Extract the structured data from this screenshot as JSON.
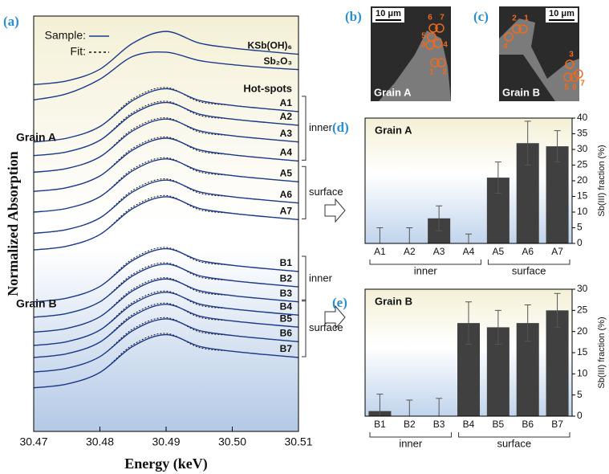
{
  "chart_data": [
    {
      "type": "line",
      "panel": "(a)",
      "xlabel": "Energy (keV)",
      "ylabel": "Normalized Absorption",
      "x": [
        30.47,
        30.475,
        30.48,
        30.485,
        30.49,
        30.495,
        30.5,
        30.505,
        30.51
      ],
      "xlim": [
        30.47,
        30.51
      ],
      "xticks": [
        30.47,
        30.48,
        30.49,
        {
          "value": 30.5,
          "label": "30.50"
        },
        30.51
      ],
      "ylim": [
        0,
        100
      ],
      "color": "#1c3a8c",
      "fit_color": "#111111",
      "legend": [
        {
          "label": "Sample:",
          "style": "solid"
        },
        {
          "label": "Fit:",
          "style": "dashed"
        }
      ],
      "annotations": [
        "Hot-spots",
        "Grain A",
        "Grain B"
      ],
      "groups": [
        {
          "label": "inner",
          "from": "A1",
          "to": "A4"
        },
        {
          "label": "surface",
          "from": "A5",
          "to": "A7"
        },
        {
          "label": "inner",
          "from": "B1",
          "to": "B3"
        },
        {
          "label": "surface",
          "from": "B4",
          "to": "B7"
        }
      ],
      "series": [
        {
          "name": "KSb(OH)₆",
          "values": [
            83.5,
            84.4,
            87.2,
            93.5,
            96.3,
            93.5,
            92.3,
            91.5,
            90.8
          ]
        },
        {
          "name": "Sb₂O₃",
          "values": [
            79.8,
            81.3,
            84.8,
            90.3,
            91.3,
            89.3,
            88.3,
            87.6,
            87.1
          ]
        },
        {
          "name": "A1",
          "values": [
            69.7,
            70.6,
            73.4,
            79.7,
            82.5,
            79.7,
            78.5,
            77.7,
            77.0
          ],
          "fit": [
            69.7,
            70.6,
            73.4,
            80.1,
            82.8,
            79.4,
            78.5,
            77.7,
            77.0
          ]
        },
        {
          "name": "A2",
          "values": [
            66.4,
            67.3,
            70.1,
            76.4,
            79.2,
            76.4,
            75.2,
            74.4,
            73.7
          ],
          "fit": [
            66.4,
            67.3,
            70.1,
            76.8,
            79.5,
            76.1,
            75.2,
            74.4,
            73.7
          ]
        },
        {
          "name": "A3",
          "values": [
            62.4,
            63.3,
            66.1,
            72.4,
            75.2,
            72.4,
            71.2,
            70.4,
            69.7
          ],
          "fit": [
            62.4,
            63.3,
            66.1,
            72.8,
            75.5,
            72.1,
            71.2,
            70.4,
            69.7
          ]
        },
        {
          "name": "A4",
          "values": [
            57.8,
            58.7,
            61.5,
            67.8,
            70.6,
            67.8,
            66.6,
            65.8,
            65.1
          ],
          "fit": [
            57.8,
            58.7,
            61.5,
            68.2,
            70.9,
            67.5,
            66.6,
            65.8,
            65.1
          ]
        },
        {
          "name": "A5",
          "values": [
            52.8,
            53.7,
            56.5,
            62.8,
            65.6,
            62.8,
            61.6,
            60.8,
            60.1
          ],
          "fit": [
            52.8,
            53.7,
            56.5,
            63.2,
            65.9,
            62.5,
            61.6,
            60.8,
            60.1
          ]
        },
        {
          "name": "A6",
          "values": [
            47.7,
            48.6,
            51.4,
            57.7,
            60.5,
            57.7,
            56.5,
            55.7,
            55.0
          ],
          "fit": [
            47.7,
            48.6,
            51.4,
            58.1,
            60.8,
            57.4,
            56.5,
            55.7,
            55.0
          ]
        },
        {
          "name": "A7",
          "values": [
            43.7,
            44.6,
            47.4,
            53.7,
            56.5,
            53.7,
            52.5,
            51.7,
            51.0
          ],
          "fit": [
            43.7,
            44.6,
            47.4,
            54.1,
            56.8,
            53.4,
            52.5,
            51.7,
            51.0
          ]
        },
        {
          "name": "B1",
          "values": [
            31.2,
            32.1,
            34.9,
            41.2,
            44.0,
            41.2,
            40.0,
            39.2,
            38.5
          ],
          "fit": [
            31.2,
            32.1,
            34.9,
            41.6,
            44.3,
            40.9,
            40.0,
            39.2,
            38.5
          ]
        },
        {
          "name": "B2",
          "values": [
            27.5,
            28.4,
            31.2,
            37.5,
            40.3,
            37.5,
            36.3,
            35.5,
            34.8
          ],
          "fit": [
            27.5,
            28.4,
            31.2,
            37.9,
            40.6,
            37.2,
            36.3,
            35.5,
            34.8
          ]
        },
        {
          "name": "B3",
          "values": [
            23.9,
            24.8,
            27.6,
            33.9,
            36.7,
            33.9,
            32.7,
            31.9,
            31.2
          ],
          "fit": [
            23.9,
            24.8,
            27.6,
            34.3,
            37.0,
            33.6,
            32.7,
            31.9,
            31.2
          ]
        },
        {
          "name": "B4",
          "values": [
            20.7,
            21.6,
            24.4,
            30.7,
            33.5,
            30.7,
            29.5,
            28.7,
            28.0
          ],
          "fit": [
            20.7,
            21.6,
            24.4,
            31.1,
            33.8,
            30.4,
            29.5,
            28.7,
            28.0
          ]
        },
        {
          "name": "B5",
          "values": [
            17.8,
            18.7,
            21.5,
            27.8,
            30.6,
            27.8,
            26.6,
            25.8,
            25.1
          ],
          "fit": [
            17.8,
            18.7,
            21.5,
            28.2,
            30.9,
            27.5,
            26.6,
            25.8,
            25.1
          ]
        },
        {
          "name": "B6",
          "values": [
            14.3,
            15.2,
            18.0,
            24.3,
            27.1,
            24.3,
            23.1,
            22.3,
            21.6
          ],
          "fit": [
            14.3,
            15.2,
            18.0,
            24.7,
            27.4,
            24.0,
            23.1,
            22.3,
            21.6
          ]
        },
        {
          "name": "B7",
          "values": [
            10.5,
            11.4,
            14.2,
            20.5,
            23.3,
            20.5,
            19.3,
            18.5,
            17.8
          ],
          "fit": [
            10.5,
            11.4,
            14.2,
            20.9,
            23.6,
            20.2,
            19.3,
            18.5,
            17.8
          ]
        }
      ]
    },
    {
      "type": "bar",
      "panel": "(d)",
      "title": "Grain A",
      "ylabel": "Sb(III) fraction (%)",
      "categories": [
        "A1",
        "A2",
        "A3",
        "A4",
        "A5",
        "A6",
        "A7"
      ],
      "values": [
        0,
        0,
        8,
        0,
        21,
        32,
        31
      ],
      "errors": [
        5,
        5,
        4,
        3,
        5,
        7,
        5
      ],
      "color": "#404040",
      "ylim": [
        0,
        40
      ],
      "yticks": [
        0,
        5,
        10,
        15,
        20,
        25,
        30,
        35,
        40
      ],
      "groups": [
        {
          "label": "inner",
          "from": "A1",
          "to": "A4"
        },
        {
          "label": "surface",
          "from": "A5",
          "to": "A7"
        }
      ]
    },
    {
      "type": "bar",
      "panel": "(e)",
      "title": "Grain B",
      "ylabel": "Sb(III) fraction (%)",
      "categories": [
        "B1",
        "B2",
        "B3",
        "B4",
        "B5",
        "B6",
        "B7"
      ],
      "values": [
        1.2,
        0,
        0,
        22,
        21,
        22,
        25
      ],
      "errors": [
        4,
        3.8,
        4.2,
        5,
        4,
        4.3,
        4
      ],
      "color": "#404040",
      "ylim": [
        0,
        30
      ],
      "yticks": [
        0,
        5,
        10,
        15,
        20,
        25,
        30
      ],
      "groups": [
        {
          "label": "inner",
          "from": "B1",
          "to": "B3"
        },
        {
          "label": "surface",
          "from": "B4",
          "to": "B7"
        }
      ]
    }
  ],
  "micrographs": [
    {
      "panel": "(b)",
      "scale": "10 μm",
      "caption": "Grain A",
      "spots": [
        "1",
        "2",
        "3",
        "4",
        "5",
        "6",
        "7"
      ]
    },
    {
      "panel": "(c)",
      "scale": "10 μm",
      "caption": "Grain B",
      "spots": [
        "1",
        "2",
        "3",
        "4",
        "5",
        "6",
        "7"
      ]
    }
  ]
}
